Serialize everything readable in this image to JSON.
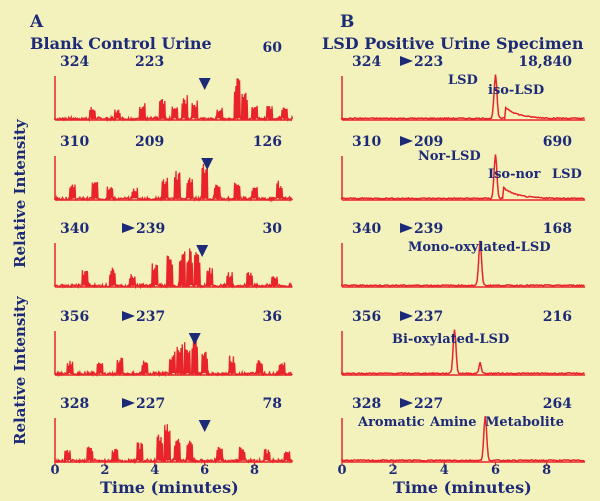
{
  "chart_data": [
    {
      "type": "line",
      "panel_label": "A",
      "title": "Blank Control Urine",
      "ylabel": "Relative Intensity",
      "xlabel": "Time (minutes)",
      "x_ticks": [
        "0",
        "2",
        "4",
        "6",
        "8"
      ],
      "xlim": [
        0,
        9.5
      ],
      "traces": [
        {
          "transition": [
            "324",
            "223"
          ],
          "arrow": false,
          "scale": "60",
          "marker_at": 6.0,
          "peaks": [
            [
              1.5,
              0.3
            ],
            [
              2.5,
              0.25
            ],
            [
              3.5,
              0.4
            ],
            [
              4.3,
              0.5
            ],
            [
              4.8,
              0.35
            ],
            [
              5.2,
              0.6
            ],
            [
              5.6,
              0.45
            ],
            [
              6.6,
              0.3
            ],
            [
              7.3,
              1.0
            ],
            [
              7.6,
              0.7
            ],
            [
              8.0,
              0.4
            ],
            [
              8.6,
              0.35
            ],
            [
              9.2,
              0.3
            ]
          ]
        },
        {
          "transition": [
            "310",
            "209"
          ],
          "arrow": false,
          "scale": "126",
          "marker_at": 6.1,
          "peaks": [
            [
              0.7,
              0.4
            ],
            [
              1.6,
              0.45
            ],
            [
              2.2,
              0.35
            ],
            [
              3.2,
              0.3
            ],
            [
              4.4,
              0.55
            ],
            [
              4.9,
              0.7
            ],
            [
              5.4,
              0.6
            ],
            [
              6.0,
              1.0
            ],
            [
              6.5,
              0.35
            ],
            [
              7.3,
              0.4
            ],
            [
              8.0,
              0.3
            ],
            [
              9.0,
              0.45
            ]
          ]
        },
        {
          "transition": [
            "340",
            "239"
          ],
          "arrow": true,
          "scale": "30",
          "marker_at": 5.9,
          "peaks": [
            [
              1.2,
              0.4
            ],
            [
              2.3,
              0.45
            ],
            [
              3.1,
              0.3
            ],
            [
              4.0,
              0.6
            ],
            [
              4.6,
              0.75
            ],
            [
              5.1,
              0.85
            ],
            [
              5.4,
              0.9
            ],
            [
              5.7,
              0.8
            ],
            [
              6.2,
              0.5
            ],
            [
              7.0,
              0.35
            ],
            [
              7.8,
              0.4
            ],
            [
              8.8,
              0.3
            ]
          ]
        },
        {
          "transition": [
            "356",
            "237"
          ],
          "arrow": true,
          "scale": "36",
          "marker_at": 5.6,
          "peaks": [
            [
              0.6,
              0.35
            ],
            [
              1.8,
              0.3
            ],
            [
              2.6,
              0.4
            ],
            [
              3.6,
              0.35
            ],
            [
              4.7,
              0.55
            ],
            [
              5.0,
              0.7
            ],
            [
              5.3,
              0.8
            ],
            [
              5.6,
              0.9
            ],
            [
              6.0,
              0.6
            ],
            [
              7.1,
              0.45
            ],
            [
              8.2,
              0.35
            ],
            [
              9.1,
              0.3
            ]
          ]
        },
        {
          "transition": [
            "328",
            "227"
          ],
          "arrow": true,
          "scale": "78",
          "marker_at": 6.0,
          "peaks": [
            [
              0.5,
              0.3
            ],
            [
              1.4,
              0.35
            ],
            [
              2.4,
              0.3
            ],
            [
              3.4,
              0.45
            ],
            [
              4.2,
              0.7
            ],
            [
              4.5,
              0.9
            ],
            [
              4.9,
              0.55
            ],
            [
              5.4,
              0.5
            ],
            [
              6.6,
              0.4
            ],
            [
              7.5,
              0.35
            ],
            [
              8.5,
              0.3
            ],
            [
              9.3,
              0.25
            ]
          ]
        }
      ]
    },
    {
      "type": "line",
      "panel_label": "B",
      "title": "LSD Positive Urine Specimen",
      "xlabel": "Time (minutes)",
      "x_ticks": [
        "0",
        "2",
        "4",
        "6",
        "8"
      ],
      "xlim": [
        0,
        9.5
      ],
      "traces": [
        {
          "transition": [
            "324",
            "223"
          ],
          "arrow": true,
          "scale": "18,840",
          "labels": [
            "LSD",
            "iso-LSD"
          ],
          "main_peak": 6.0,
          "shoulder": 6.4
        },
        {
          "transition": [
            "310",
            "209"
          ],
          "arrow": true,
          "scale": "690",
          "labels": [
            "Nor-LSD",
            "Iso-nor",
            "LSD"
          ],
          "main_peak": 6.0,
          "shoulder": 6.3
        },
        {
          "transition": [
            "340",
            "239"
          ],
          "arrow": true,
          "scale": "168",
          "labels": [
            "Mono-oxylated-LSD"
          ],
          "main_peak": 5.4
        },
        {
          "transition": [
            "356",
            "237"
          ],
          "arrow": true,
          "scale": "216",
          "labels": [
            "Bi-oxylated-LSD"
          ],
          "main_peak": 4.4,
          "minor_peak": 5.4
        },
        {
          "transition": [
            "328",
            "227"
          ],
          "arrow": true,
          "scale": "264",
          "labels": [
            "Aromatic",
            "Amine",
            "Metabolite"
          ],
          "main_peak": 5.6
        }
      ]
    }
  ]
}
